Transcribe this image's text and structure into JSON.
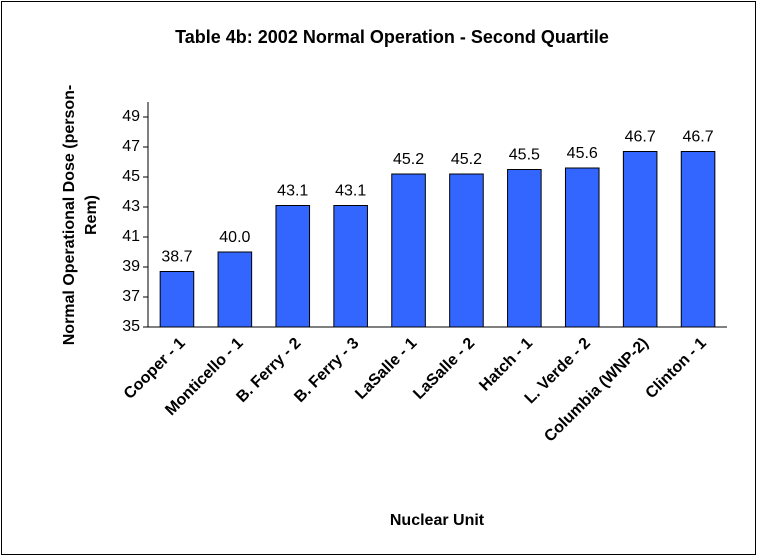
{
  "chart_data": {
    "type": "bar",
    "title": "Table 4b: 2002 Normal Operation - Second Quartile",
    "y_label": [
      "Normal Operational Dose (person-",
      "Rem)"
    ],
    "x_label": "Nuclear Unit",
    "categories": [
      "Cooper - 1",
      "Monticello - 1",
      "B. Ferry - 2",
      "B. Ferry - 3",
      "LaSalle - 1",
      "LaSalle - 2",
      "Hatch - 1",
      "L. Verde - 2",
      "Columbia (WNP-2)",
      "Clinton - 1"
    ],
    "values": [
      38.7,
      40.0,
      43.1,
      43.1,
      45.2,
      45.2,
      45.5,
      45.6,
      46.7,
      46.7
    ],
    "value_labels": [
      "38.7",
      "40.0",
      "43.1",
      "43.1",
      "45.2",
      "45.2",
      "45.5",
      "45.6",
      "46.7",
      "46.7"
    ],
    "color": "#3366ff",
    "ylim": [
      35,
      50
    ],
    "yticks": [
      35,
      37,
      39,
      41,
      43,
      45,
      47,
      49
    ],
    "grid": false
  }
}
